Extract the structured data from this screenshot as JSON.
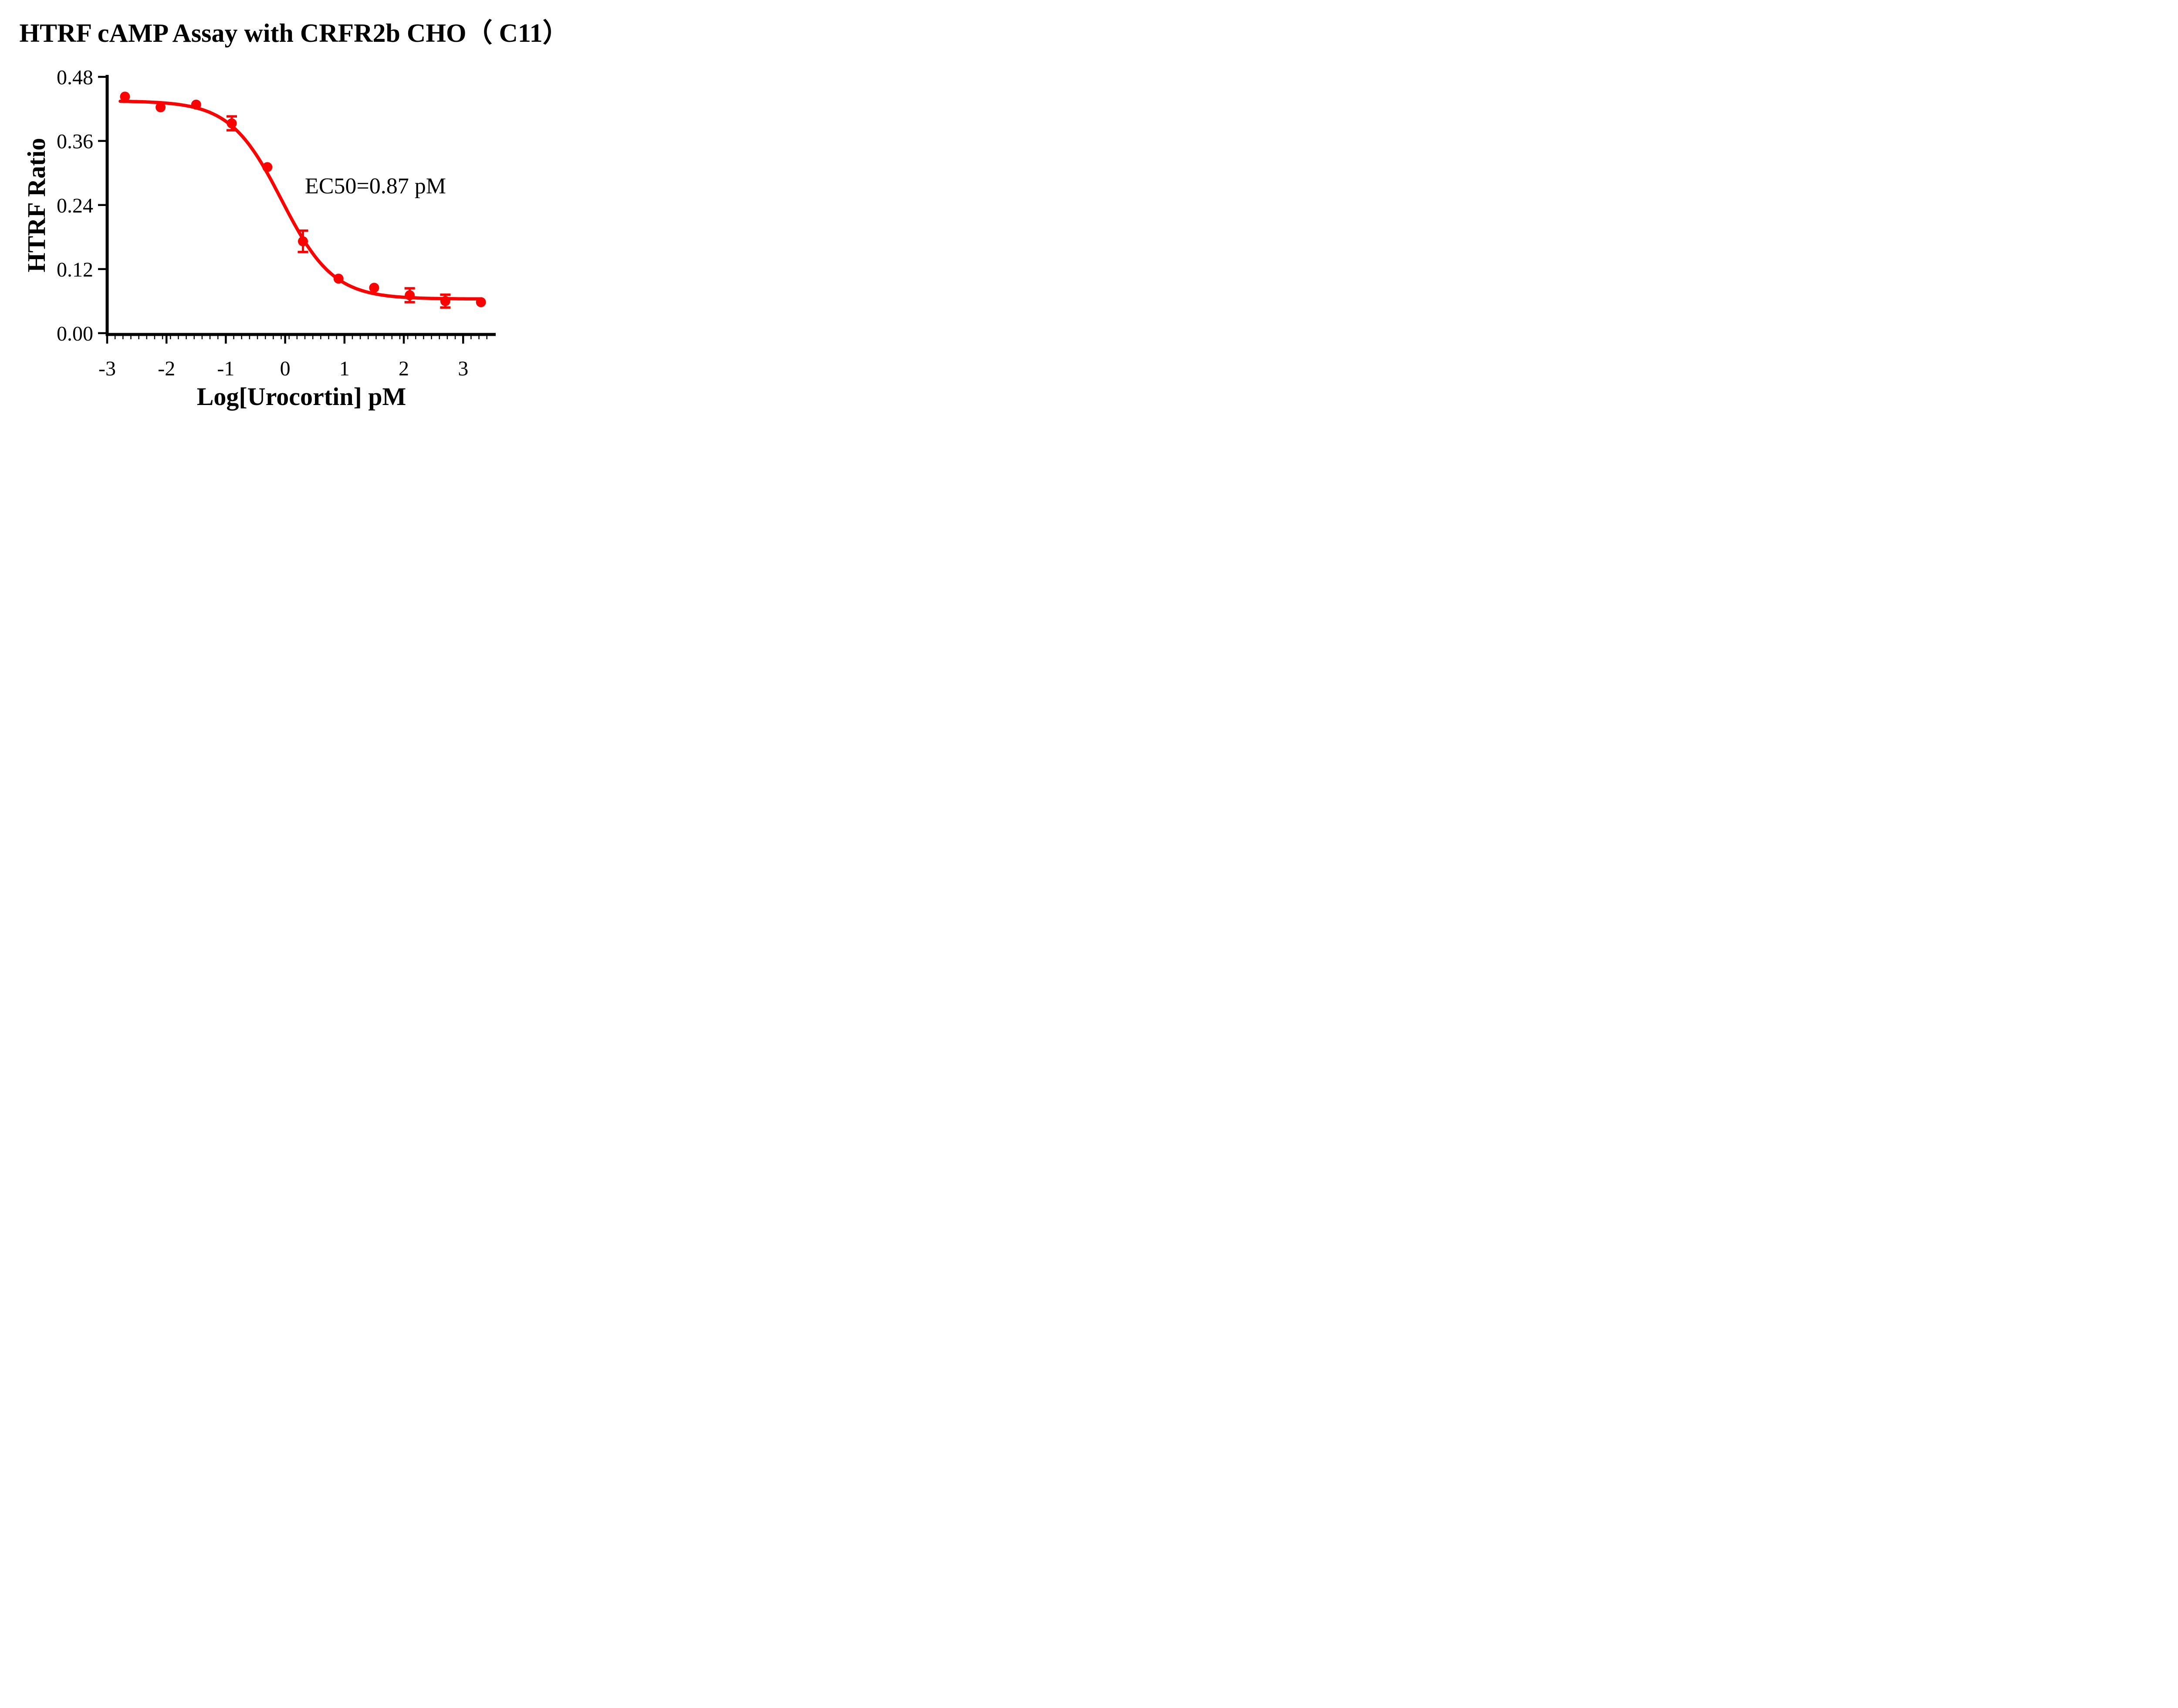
{
  "chart_data": {
    "type": "line",
    "title": "HTRF cAMP Assay with CRFR2b CHO（ C11）",
    "xlabel": "Log[Urocortin] pM",
    "ylabel": "HTRF Ratio",
    "xlim": [
      -3,
      3.55
    ],
    "ylim": [
      0,
      0.48
    ],
    "x_ticks": [
      {
        "value": -3,
        "label": "-3"
      },
      {
        "value": -2,
        "label": "-2"
      },
      {
        "value": -1,
        "label": "-1"
      },
      {
        "value": 0,
        "label": "0"
      },
      {
        "value": 1,
        "label": "1"
      },
      {
        "value": 2,
        "label": "2"
      },
      {
        "value": 3,
        "label": "3"
      }
    ],
    "y_ticks": [
      {
        "value": 0.0,
        "label": "0.00"
      },
      {
        "value": 0.12,
        "label": "0.12"
      },
      {
        "value": 0.24,
        "label": "0.24"
      },
      {
        "value": 0.36,
        "label": "0.36"
      },
      {
        "value": 0.48,
        "label": "0.48"
      }
    ],
    "grid": false,
    "legend": false,
    "minor_ticks_x": true,
    "annotation": {
      "text": "EC50=0.87 pM",
      "x_log": 1.5,
      "y_ratio": 0.27
    },
    "series": [
      {
        "name": "Urocortin",
        "color": "#FF0000",
        "marker": "circle",
        "points": [
          {
            "x": -2.7,
            "y": 0.443,
            "err": null
          },
          {
            "x": -2.1,
            "y": 0.423,
            "err": null
          },
          {
            "x": -1.5,
            "y": 0.428,
            "err": null
          },
          {
            "x": -0.9,
            "y": 0.393,
            "err": 0.013
          },
          {
            "x": -0.3,
            "y": 0.311,
            "err": null
          },
          {
            "x": 0.3,
            "y": 0.172,
            "err": 0.02
          },
          {
            "x": 0.9,
            "y": 0.102,
            "err": null
          },
          {
            "x": 1.5,
            "y": 0.085,
            "err": null
          },
          {
            "x": 2.1,
            "y": 0.071,
            "err": 0.013
          },
          {
            "x": 2.7,
            "y": 0.06,
            "err": 0.012
          },
          {
            "x": 3.3,
            "y": 0.058,
            "err": null
          }
        ],
        "fit_curve": {
          "model": "four-parameter logistic (sigmoidal dose-response)",
          "top": 0.435,
          "bottom": 0.064,
          "log_ec50": -0.06,
          "hill_slope": 1.0,
          "x_start": -2.78,
          "x_end": 3.33
        },
        "ec50_pM": 0.87
      }
    ]
  },
  "colors": {
    "series": "#FF0000",
    "axis": "#000000",
    "text": "#000000",
    "background": "#FFFFFF"
  }
}
